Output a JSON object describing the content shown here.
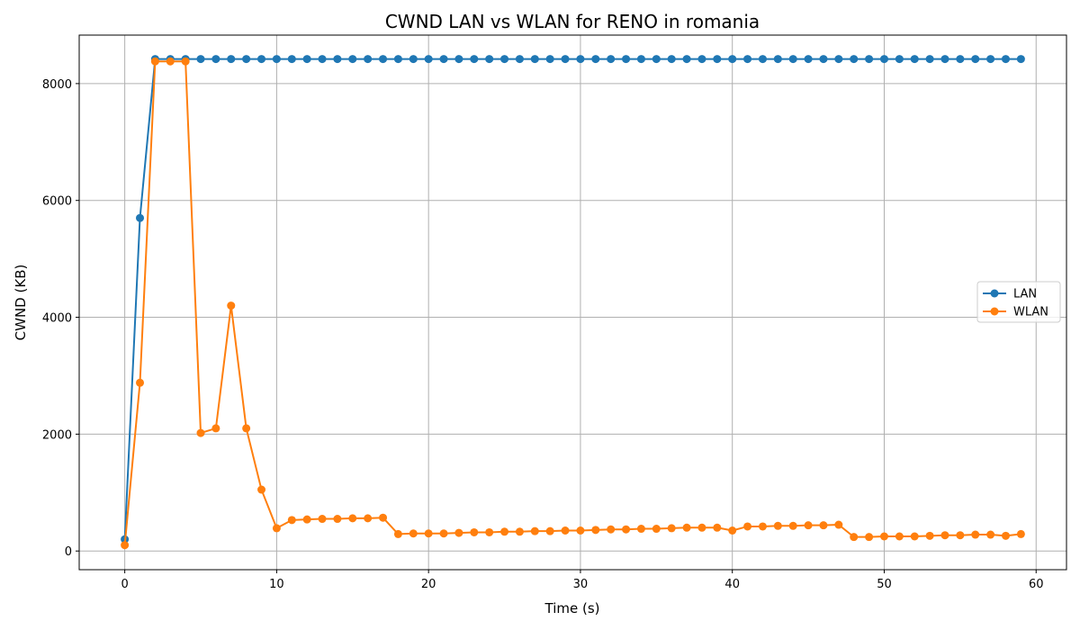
{
  "chart_data": {
    "type": "line",
    "title": "CWND LAN vs WLAN for RENO in romania",
    "xlabel": "Time (s)",
    "ylabel": "CWND (KB)",
    "xlim": [
      -3,
      62
    ],
    "ylim": [
      -320,
      8830
    ],
    "xticks": [
      0,
      10,
      20,
      30,
      40,
      50,
      60
    ],
    "yticks": [
      0,
      2000,
      4000,
      6000,
      8000
    ],
    "grid": true,
    "legend_position": "center-right",
    "x": [
      0,
      1,
      2,
      3,
      4,
      5,
      6,
      7,
      8,
      9,
      10,
      11,
      12,
      13,
      14,
      15,
      16,
      17,
      18,
      19,
      20,
      21,
      22,
      23,
      24,
      25,
      26,
      27,
      28,
      29,
      30,
      31,
      32,
      33,
      34,
      35,
      36,
      37,
      38,
      39,
      40,
      41,
      42,
      43,
      44,
      45,
      46,
      47,
      48,
      49,
      50,
      51,
      52,
      53,
      54,
      55,
      56,
      57,
      58,
      59
    ],
    "series": [
      {
        "name": "LAN",
        "color": "#1f77b4",
        "values": [
          200,
          5700,
          8420,
          8420,
          8420,
          8420,
          8420,
          8420,
          8420,
          8420,
          8420,
          8420,
          8420,
          8420,
          8420,
          8420,
          8420,
          8420,
          8420,
          8420,
          8420,
          8420,
          8420,
          8420,
          8420,
          8420,
          8420,
          8420,
          8420,
          8420,
          8420,
          8420,
          8420,
          8420,
          8420,
          8420,
          8420,
          8420,
          8420,
          8420,
          8420,
          8420,
          8420,
          8420,
          8420,
          8420,
          8420,
          8420,
          8420,
          8420,
          8420,
          8420,
          8420,
          8420,
          8420,
          8420,
          8420,
          8420,
          8420,
          8420
        ]
      },
      {
        "name": "WLAN",
        "color": "#ff7f0e",
        "values": [
          100,
          2880,
          8380,
          8380,
          8380,
          2020,
          2100,
          4200,
          2100,
          1050,
          390,
          530,
          540,
          550,
          550,
          560,
          560,
          570,
          290,
          300,
          300,
          300,
          310,
          320,
          320,
          330,
          330,
          340,
          340,
          350,
          350,
          360,
          370,
          370,
          380,
          380,
          390,
          400,
          400,
          400,
          350,
          420,
          420,
          430,
          430,
          440,
          440,
          450,
          240,
          240,
          250,
          250,
          250,
          260,
          270,
          270,
          280,
          280,
          260,
          290
        ]
      }
    ]
  }
}
